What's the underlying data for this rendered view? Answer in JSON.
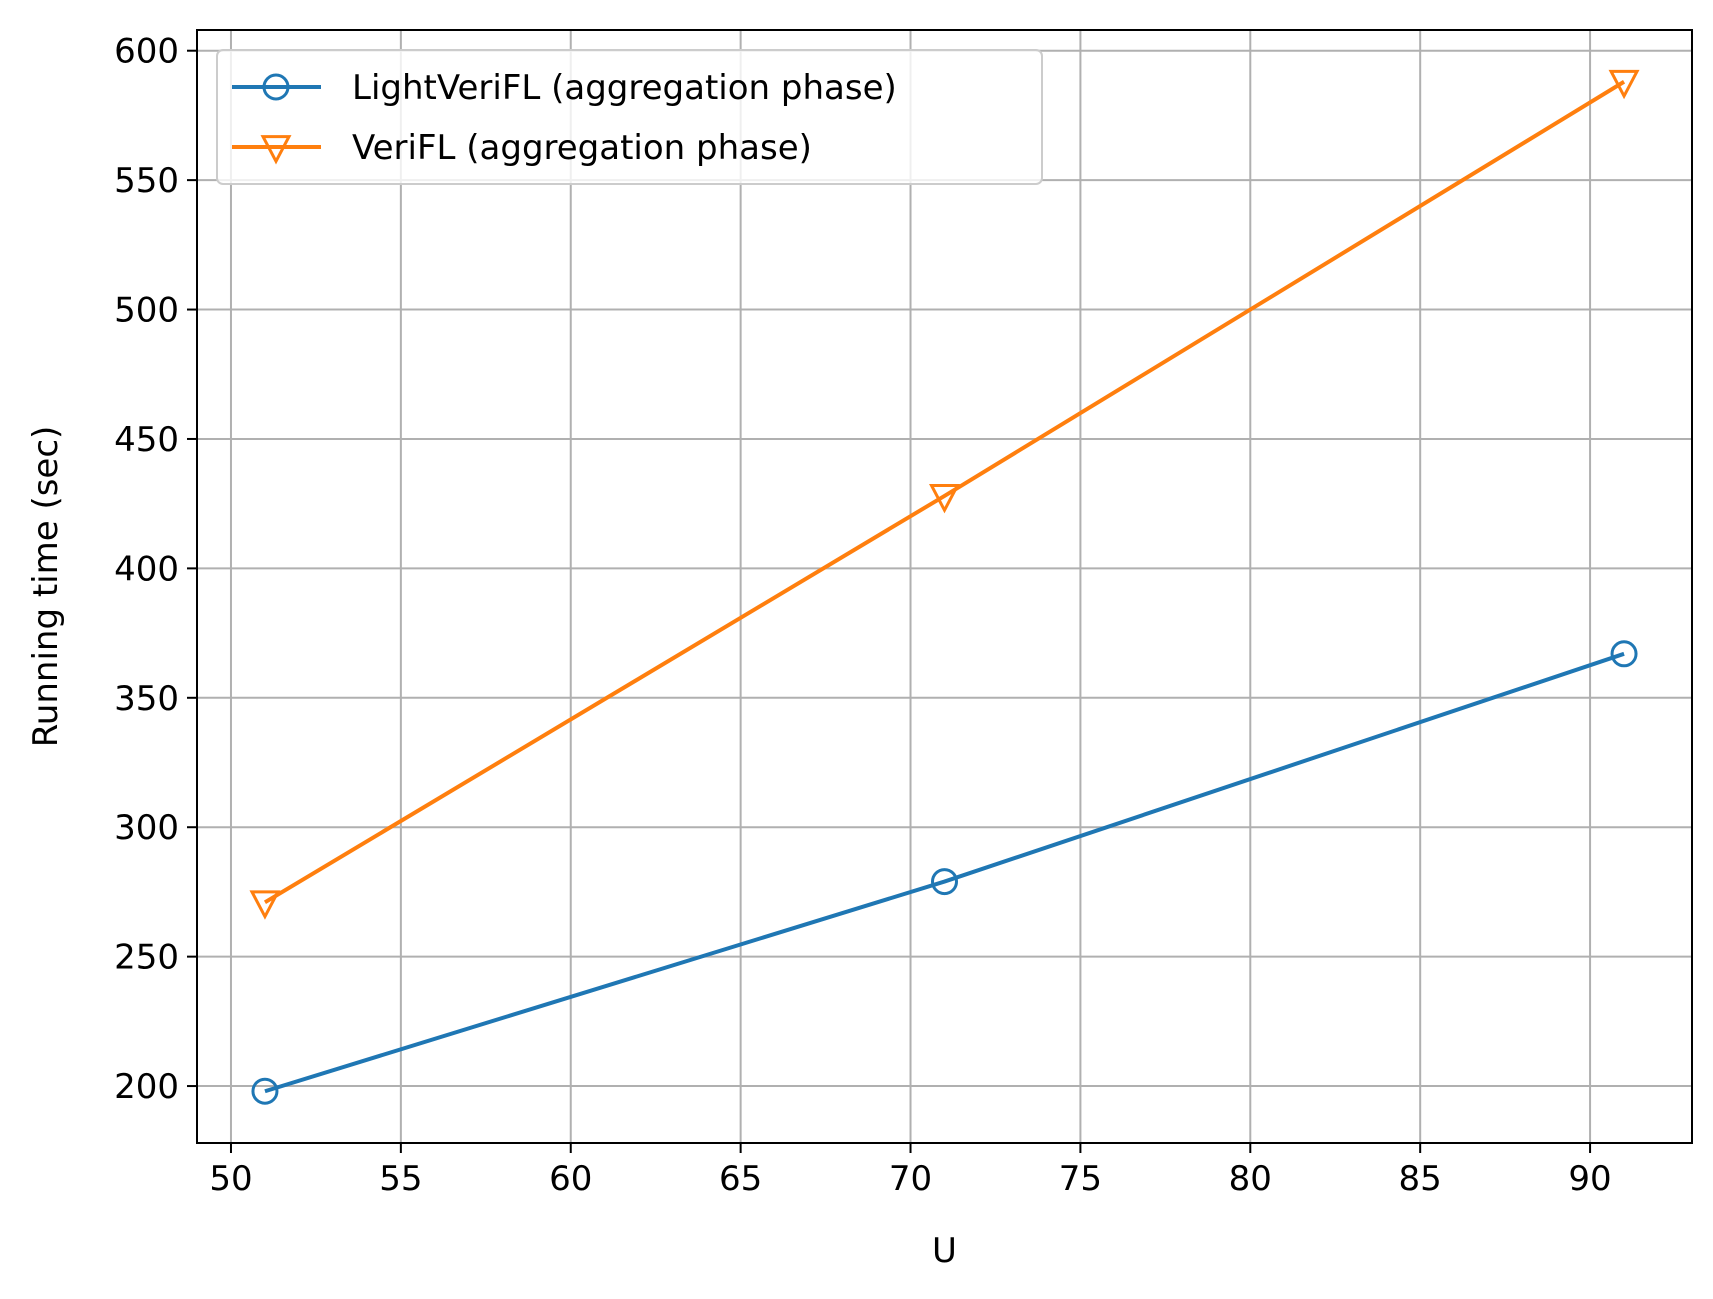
{
  "chart_data": {
    "type": "line",
    "title": "",
    "xlabel": "U",
    "ylabel": "Running time (sec)",
    "xlim": [
      49,
      93
    ],
    "ylim": [
      178,
      608
    ],
    "x_ticks": [
      50,
      55,
      60,
      65,
      70,
      75,
      80,
      85,
      90
    ],
    "y_ticks": [
      200,
      250,
      300,
      350,
      400,
      450,
      500,
      550,
      600
    ],
    "x_tick_labels": [
      "50",
      "55",
      "60",
      "65",
      "70",
      "75",
      "80",
      "85",
      "90"
    ],
    "y_tick_labels": [
      "200",
      "250",
      "300",
      "350",
      "400",
      "450",
      "500",
      "550",
      "600"
    ],
    "grid": true,
    "legend_position": "top-left",
    "series": [
      {
        "name": "LightVeriFL (aggregation phase)",
        "x": [
          51,
          71,
          91
        ],
        "y": [
          198,
          279,
          367
        ],
        "color": "#1f77b4",
        "marker": "circle"
      },
      {
        "name": "VeriFL (aggregation phase)",
        "x": [
          51,
          71,
          91
        ],
        "y": [
          271,
          428,
          588
        ],
        "color": "#ff7f0e",
        "marker": "triangle-down"
      }
    ]
  }
}
